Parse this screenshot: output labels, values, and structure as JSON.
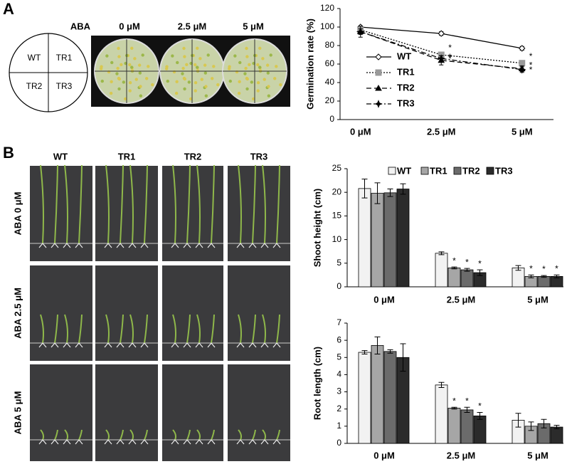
{
  "panel_labels": [
    "A",
    "B"
  ],
  "panel_a": {
    "plate_layout": [
      "WT",
      "TR1",
      "TR2",
      "TR3"
    ],
    "aba_label": "ABA",
    "treatments": [
      "0 μM",
      "2.5 μM",
      "5 μM"
    ]
  },
  "panel_b": {
    "genotypes": [
      "WT",
      "TR1",
      "TR2",
      "TR3"
    ],
    "row_labels": [
      "ABA 0 μM",
      "ABA 2.5 μM",
      "ABA 5 μM"
    ]
  },
  "chart_data": [
    {
      "type": "line",
      "y_label": "Germination rate (%)",
      "categories": [
        "0 μM",
        "2.5 μM",
        "5 μM"
      ],
      "ylim": [
        0,
        120
      ],
      "yticks": [
        0,
        20,
        40,
        60,
        80,
        100,
        120
      ],
      "legend": "left",
      "series": [
        {
          "name": "WT",
          "color": "#000000",
          "marker": "diamond-open",
          "dash": "solid",
          "values": [
            100,
            93,
            77
          ],
          "errors": [
            1,
            2,
            2
          ],
          "significance": [
            null,
            null,
            null
          ]
        },
        {
          "name": "TR1",
          "color": "#000000",
          "marker": "square",
          "dash": "dotted",
          "values": [
            97,
            70,
            61
          ],
          "errors": [
            2,
            2,
            2
          ],
          "significance": [
            null,
            "*",
            "*"
          ]
        },
        {
          "name": "TR2",
          "color": "#000000",
          "marker": "triangle",
          "dash": "dashed",
          "values": [
            95,
            64,
            55
          ],
          "errors": [
            3,
            5,
            3
          ],
          "significance": [
            null,
            "*",
            "*"
          ]
        },
        {
          "name": "TR3",
          "color": "#000000",
          "marker": "star",
          "dash": "dashdot",
          "values": [
            95,
            66,
            54
          ],
          "errors": [
            6,
            3,
            3
          ],
          "significance": [
            null,
            "*",
            "*"
          ]
        }
      ]
    },
    {
      "type": "bar",
      "y_label": "Shoot height (cm)",
      "categories": [
        "0 μM",
        "2.5 μM",
        "5 μM"
      ],
      "ylim": [
        0,
        25
      ],
      "yticks": [
        0,
        5,
        10,
        15,
        20,
        25
      ],
      "legend": "top",
      "series": [
        {
          "name": "WT",
          "color": "#f2f2f2",
          "values": [
            20.8,
            7.1,
            4.0
          ],
          "errors": [
            2.0,
            0.3,
            0.5
          ],
          "significance": [
            null,
            null,
            null
          ]
        },
        {
          "name": "TR1",
          "color": "#a6a6a6",
          "values": [
            19.8,
            4.0,
            2.2
          ],
          "errors": [
            2.2,
            0.2,
            0.3
          ],
          "significance": [
            null,
            "*",
            "*"
          ]
        },
        {
          "name": "TR2",
          "color": "#6b6b6b",
          "values": [
            19.9,
            3.6,
            2.2
          ],
          "errors": [
            0.8,
            0.3,
            0.2
          ],
          "significance": [
            null,
            "*",
            "*"
          ]
        },
        {
          "name": "TR3",
          "color": "#2b2b2b",
          "values": [
            20.7,
            3.0,
            2.2
          ],
          "errors": [
            1.1,
            0.6,
            0.3
          ],
          "significance": [
            null,
            "*",
            "*"
          ]
        }
      ]
    },
    {
      "type": "bar",
      "y_label": "Root length (cm)",
      "categories": [
        "0 μM",
        "2.5 μM",
        "5 μM"
      ],
      "ylim": [
        0,
        7
      ],
      "yticks": [
        0,
        1,
        2,
        3,
        4,
        5,
        6,
        7
      ],
      "series": [
        {
          "name": "WT",
          "color": "#f2f2f2",
          "values": [
            5.3,
            3.4,
            1.35
          ],
          "errors": [
            0.1,
            0.15,
            0.4
          ],
          "significance": [
            null,
            null,
            null
          ]
        },
        {
          "name": "TR1",
          "color": "#a6a6a6",
          "values": [
            5.7,
            2.05,
            1.0
          ],
          "errors": [
            0.5,
            0.05,
            0.25
          ],
          "significance": [
            null,
            "*",
            null
          ]
        },
        {
          "name": "TR2",
          "color": "#6b6b6b",
          "values": [
            5.35,
            1.95,
            1.15
          ],
          "errors": [
            0.1,
            0.15,
            0.25
          ],
          "significance": [
            null,
            "*",
            null
          ]
        },
        {
          "name": "TR3",
          "color": "#2b2b2b",
          "values": [
            5.0,
            1.6,
            0.95
          ],
          "errors": [
            0.8,
            0.2,
            0.1
          ],
          "significance": [
            null,
            "*",
            null
          ]
        }
      ]
    }
  ]
}
